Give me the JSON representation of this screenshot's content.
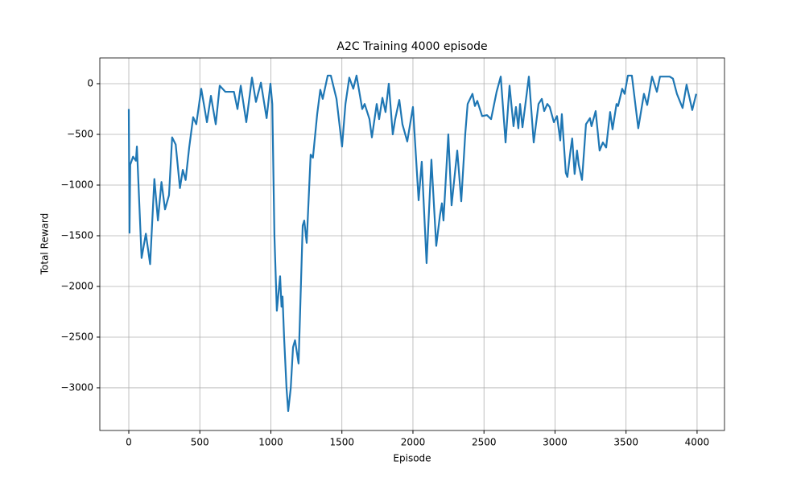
{
  "chart_data": {
    "type": "line",
    "title": "A2C Training 4000 episode",
    "xlabel": "Episode",
    "ylabel": "Total Reward",
    "x": [
      0,
      5,
      10,
      30,
      50,
      57,
      90,
      120,
      150,
      180,
      205,
      230,
      255,
      283,
      305,
      330,
      360,
      380,
      400,
      425,
      453,
      475,
      510,
      550,
      578,
      612,
      640,
      680,
      740,
      765,
      788,
      827,
      867,
      895,
      930,
      970,
      997,
      1010,
      1025,
      1042,
      1065,
      1075,
      1082,
      1093,
      1110,
      1122,
      1140,
      1156,
      1170,
      1195,
      1224,
      1235,
      1252,
      1280,
      1296,
      1326,
      1348,
      1365,
      1400,
      1422,
      1462,
      1501,
      1525,
      1552,
      1580,
      1603,
      1643,
      1660,
      1694,
      1711,
      1745,
      1762,
      1785,
      1807,
      1830,
      1858,
      1875,
      1904,
      1926,
      1960,
      2000,
      2040,
      2062,
      2096,
      2130,
      2164,
      2190,
      2204,
      2215,
      2249,
      2272,
      2312,
      2340,
      2368,
      2385,
      2419,
      2436,
      2453,
      2487,
      2521,
      2550,
      2589,
      2618,
      2652,
      2680,
      2708,
      2725,
      2742,
      2754,
      2771,
      2816,
      2850,
      2884,
      2907,
      2924,
      2946,
      2963,
      2992,
      3014,
      3037,
      3048,
      3076,
      3087,
      3110,
      3121,
      3138,
      3155,
      3167,
      3190,
      3218,
      3246,
      3257,
      3286,
      3314,
      3337,
      3360,
      3388,
      3405,
      3433,
      3444,
      3473,
      3490,
      3513,
      3541,
      3586,
      3626,
      3649,
      3683,
      3717,
      3739,
      3807,
      3830,
      3858,
      3898,
      3926,
      3966,
      3994
    ],
    "values": [
      -250,
      -1470,
      -800,
      -720,
      -760,
      -620,
      -1720,
      -1480,
      -1780,
      -940,
      -1350,
      -970,
      -1240,
      -1100,
      -530,
      -600,
      -1030,
      -850,
      -950,
      -630,
      -330,
      -400,
      -50,
      -380,
      -120,
      -400,
      -20,
      -80,
      -80,
      -250,
      -20,
      -380,
      60,
      -180,
      10,
      -340,
      0,
      -200,
      -1500,
      -2240,
      -1900,
      -2200,
      -2100,
      -2500,
      -3000,
      -3230,
      -3000,
      -2600,
      -2530,
      -2760,
      -1400,
      -1350,
      -1570,
      -700,
      -730,
      -300,
      -60,
      -150,
      80,
      80,
      -150,
      -620,
      -200,
      60,
      -50,
      80,
      -250,
      -200,
      -350,
      -530,
      -200,
      -350,
      -140,
      -280,
      0,
      -500,
      -350,
      -160,
      -400,
      -570,
      -230,
      -1150,
      -770,
      -1770,
      -750,
      -1600,
      -1300,
      -1180,
      -1350,
      -500,
      -1200,
      -660,
      -1160,
      -500,
      -200,
      -100,
      -220,
      -170,
      -320,
      -310,
      -350,
      -80,
      70,
      -580,
      -20,
      -420,
      -230,
      -440,
      -200,
      -430,
      70,
      -580,
      -200,
      -150,
      -270,
      -200,
      -230,
      -380,
      -320,
      -560,
      -300,
      -880,
      -920,
      -650,
      -540,
      -890,
      -660,
      -800,
      -950,
      -400,
      -340,
      -420,
      -270,
      -660,
      -580,
      -630,
      -280,
      -450,
      -200,
      -220,
      -50,
      -100,
      80,
      80,
      -440,
      -100,
      -210,
      70,
      -80,
      70,
      70,
      50,
      -100,
      -240,
      -10,
      -260,
      -100
    ],
    "color": "#1f77b4",
    "xlim": [
      -204,
      4193
    ],
    "ylim": [
      -3421,
      254
    ],
    "xticks": [
      0,
      500,
      1000,
      1500,
      2000,
      2500,
      3000,
      3500,
      4000
    ],
    "yticks": [
      {
        "value": -3000,
        "label": "−3000"
      },
      {
        "value": -2500,
        "label": "−2500"
      },
      {
        "value": -2000,
        "label": "−2000"
      },
      {
        "value": -1500,
        "label": "−1500"
      },
      {
        "value": -1000,
        "label": "−1000"
      },
      {
        "value": -500,
        "label": "−500"
      },
      0
    ],
    "grid": true
  }
}
